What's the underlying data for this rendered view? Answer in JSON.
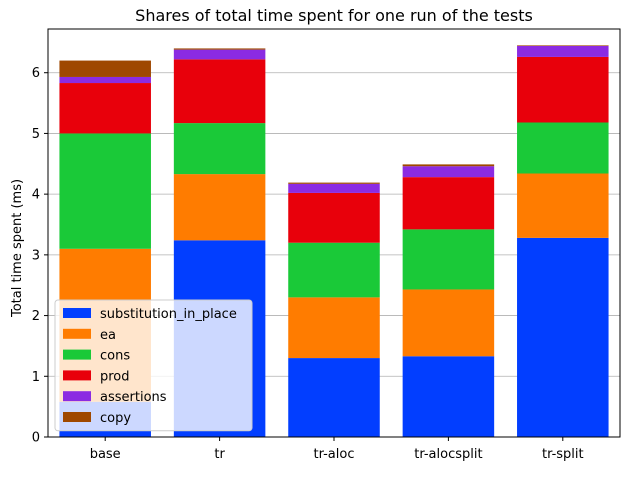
{
  "chart_data": {
    "type": "bar",
    "stacked": true,
    "title": "Shares of total time spent for one run of the tests",
    "xlabel": "",
    "ylabel": "Total time spent (ms)",
    "ylim": [
      0,
      6.72
    ],
    "yticks": [
      0,
      1,
      2,
      3,
      4,
      5,
      6
    ],
    "grid": "y",
    "legend_position": "lower-left",
    "categories": [
      "base",
      "tr",
      "tr-aloc",
      "tr-alocsplit",
      "tr-split"
    ],
    "series": [
      {
        "name": "substitution_in_place",
        "color": "#023eff",
        "values": [
          0.58,
          3.24,
          1.3,
          1.33,
          3.28
        ]
      },
      {
        "name": "ea",
        "color": "#ff7c00",
        "values": [
          2.52,
          1.09,
          1.0,
          1.1,
          1.06
        ]
      },
      {
        "name": "cons",
        "color": "#1ac938",
        "values": [
          1.9,
          0.84,
          0.9,
          0.99,
          0.84
        ]
      },
      {
        "name": "prod",
        "color": "#e8000b",
        "values": [
          0.83,
          1.05,
          0.82,
          0.86,
          1.08
        ]
      },
      {
        "name": "assertions",
        "color": "#8b2be2",
        "values": [
          0.1,
          0.16,
          0.15,
          0.18,
          0.18
        ]
      },
      {
        "name": "copy",
        "color": "#9f4800",
        "values": [
          0.27,
          0.02,
          0.02,
          0.03,
          0.01
        ]
      }
    ]
  }
}
